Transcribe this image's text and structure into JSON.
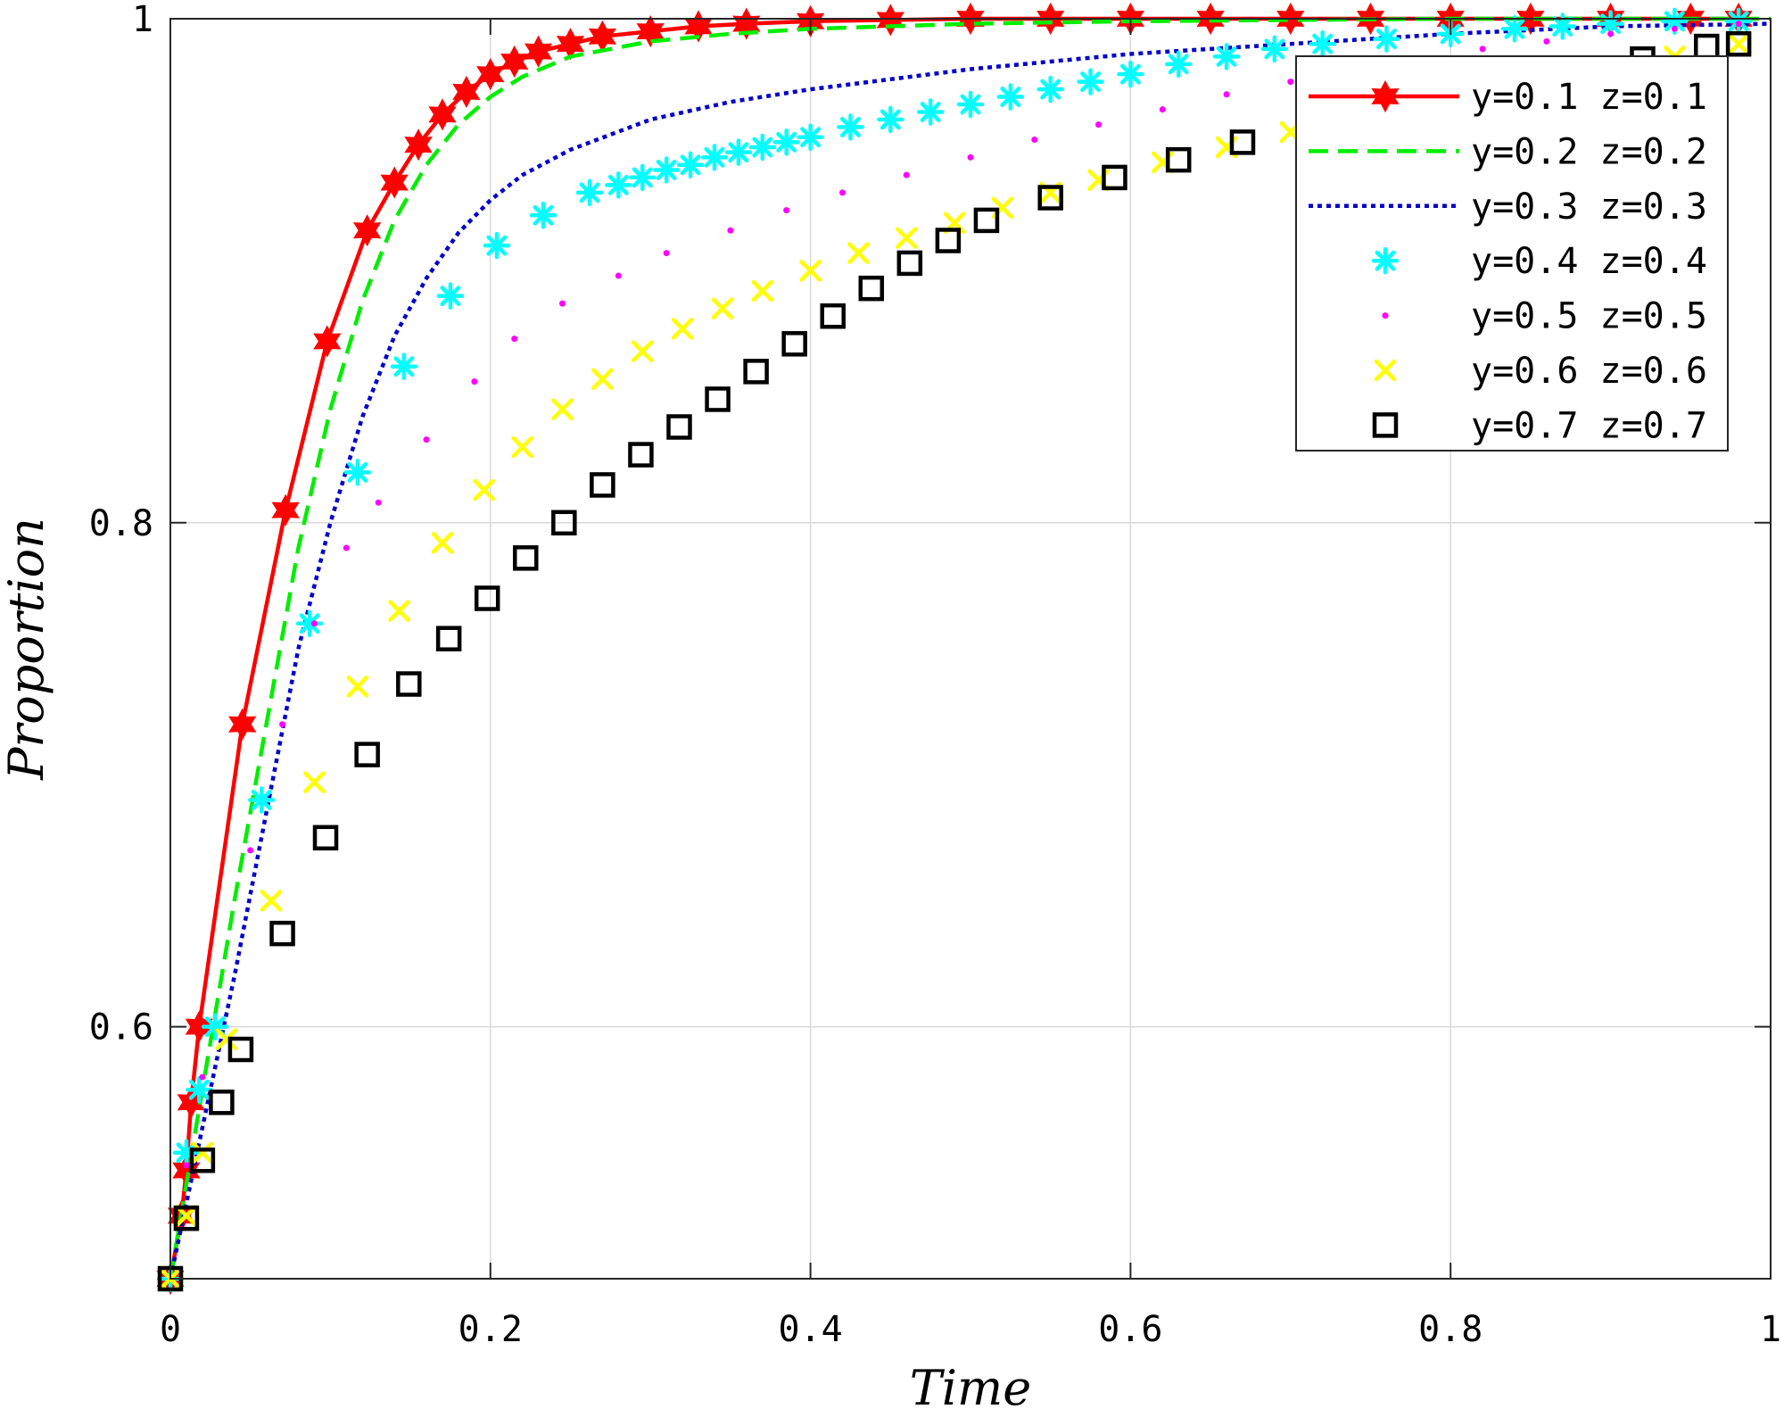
{
  "chart_data": {
    "type": "line",
    "title": "",
    "xlabel": "Time",
    "ylabel": "Proportion",
    "xlim": [
      0,
      1
    ],
    "ylim": [
      0.5,
      1
    ],
    "xticks": [
      0,
      0.2,
      0.4,
      0.6,
      0.8,
      1
    ],
    "xtick_labels": [
      "0",
      "0.2",
      "0.4",
      "0.6",
      "0.8",
      "1"
    ],
    "yticks": [
      0.6,
      0.8,
      1
    ],
    "ytick_labels": [
      "0.6",
      "0.8",
      "1"
    ],
    "grid": true,
    "legend_position": "top-right",
    "series": [
      {
        "name": "y=0.1  z=0.1",
        "color": "#ff0000",
        "line": "solid",
        "marker": "hexagram",
        "points": [
          [
            0,
            0.5
          ],
          [
            0.007,
            0.525
          ],
          [
            0.01,
            0.543
          ],
          [
            0.013,
            0.57
          ],
          [
            0.018,
            0.6
          ],
          [
            0.045,
            0.72
          ],
          [
            0.072,
            0.805
          ],
          [
            0.098,
            0.872
          ],
          [
            0.123,
            0.916
          ],
          [
            0.14,
            0.935
          ],
          [
            0.155,
            0.95
          ],
          [
            0.17,
            0.962
          ],
          [
            0.185,
            0.971
          ],
          [
            0.2,
            0.978
          ],
          [
            0.215,
            0.983
          ],
          [
            0.23,
            0.987
          ],
          [
            0.25,
            0.99
          ],
          [
            0.27,
            0.993
          ],
          [
            0.3,
            0.995
          ],
          [
            0.33,
            0.997
          ],
          [
            0.36,
            0.998
          ],
          [
            0.4,
            0.999
          ],
          [
            0.45,
            0.9995
          ],
          [
            0.5,
            1
          ],
          [
            0.55,
            1
          ],
          [
            0.6,
            1
          ],
          [
            0.65,
            1
          ],
          [
            0.7,
            1
          ],
          [
            0.75,
            1
          ],
          [
            0.8,
            1
          ],
          [
            0.85,
            1
          ],
          [
            0.9,
            1
          ],
          [
            0.95,
            1
          ],
          [
            0.98,
            1
          ]
        ]
      },
      {
        "name": "y=0.2  z=0.2",
        "color": "#00ee00",
        "line": "dashed",
        "marker": "none",
        "points": [
          [
            0,
            0.5
          ],
          [
            0.02,
            0.575
          ],
          [
            0.04,
            0.65
          ],
          [
            0.06,
            0.72
          ],
          [
            0.08,
            0.79
          ],
          [
            0.1,
            0.845
          ],
          [
            0.12,
            0.888
          ],
          [
            0.14,
            0.92
          ],
          [
            0.16,
            0.942
          ],
          [
            0.18,
            0.958
          ],
          [
            0.2,
            0.969
          ],
          [
            0.22,
            0.977
          ],
          [
            0.25,
            0.985
          ],
          [
            0.3,
            0.991
          ],
          [
            0.35,
            0.994
          ],
          [
            0.4,
            0.996
          ],
          [
            0.5,
            0.998
          ],
          [
            0.6,
            0.999
          ],
          [
            0.7,
            0.9995
          ],
          [
            0.8,
            1
          ],
          [
            1,
            1
          ]
        ]
      },
      {
        "name": "y=0.3  z=0.3",
        "color": "#0000cc",
        "line": "dotted",
        "marker": "none",
        "points": [
          [
            0,
            0.5
          ],
          [
            0.02,
            0.56
          ],
          [
            0.04,
            0.62
          ],
          [
            0.06,
            0.685
          ],
          [
            0.08,
            0.75
          ],
          [
            0.1,
            0.8
          ],
          [
            0.12,
            0.842
          ],
          [
            0.14,
            0.874
          ],
          [
            0.16,
            0.897
          ],
          [
            0.18,
            0.915
          ],
          [
            0.2,
            0.928
          ],
          [
            0.22,
            0.938
          ],
          [
            0.25,
            0.948
          ],
          [
            0.3,
            0.96
          ],
          [
            0.35,
            0.967
          ],
          [
            0.4,
            0.972
          ],
          [
            0.5,
            0.98
          ],
          [
            0.6,
            0.986
          ],
          [
            0.7,
            0.99
          ],
          [
            0.8,
            0.994
          ],
          [
            0.9,
            0.997
          ],
          [
            1,
            0.998
          ]
        ]
      },
      {
        "name": "y=0.4  z=0.4",
        "color": "#00ffff",
        "line": "none",
        "marker": "asterisk",
        "points": [
          [
            0,
            0.5
          ],
          [
            0.01,
            0.55
          ],
          [
            0.018,
            0.575
          ],
          [
            0.028,
            0.6
          ],
          [
            0.057,
            0.69
          ],
          [
            0.087,
            0.76
          ],
          [
            0.117,
            0.82
          ],
          [
            0.146,
            0.862
          ],
          [
            0.175,
            0.89
          ],
          [
            0.204,
            0.91
          ],
          [
            0.233,
            0.922
          ],
          [
            0.262,
            0.931
          ],
          [
            0.28,
            0.934
          ],
          [
            0.295,
            0.937
          ],
          [
            0.31,
            0.94
          ],
          [
            0.325,
            0.942
          ],
          [
            0.34,
            0.945
          ],
          [
            0.355,
            0.947
          ],
          [
            0.37,
            0.949
          ],
          [
            0.385,
            0.951
          ],
          [
            0.4,
            0.953
          ],
          [
            0.425,
            0.957
          ],
          [
            0.45,
            0.96
          ],
          [
            0.475,
            0.963
          ],
          [
            0.5,
            0.966
          ],
          [
            0.525,
            0.969
          ],
          [
            0.55,
            0.972
          ],
          [
            0.575,
            0.975
          ],
          [
            0.6,
            0.978
          ],
          [
            0.63,
            0.982
          ],
          [
            0.66,
            0.985
          ],
          [
            0.69,
            0.988
          ],
          [
            0.72,
            0.99
          ],
          [
            0.76,
            0.992
          ],
          [
            0.8,
            0.994
          ],
          [
            0.84,
            0.996
          ],
          [
            0.87,
            0.997
          ],
          [
            0.9,
            0.998
          ],
          [
            0.94,
            0.999
          ],
          [
            0.98,
            0.999
          ]
        ]
      },
      {
        "name": "y=0.5  z=0.5",
        "color": "#ff00ff",
        "line": "none",
        "marker": "point",
        "points": [
          [
            0,
            0.5
          ],
          [
            0.01,
            0.545
          ],
          [
            0.02,
            0.58
          ],
          [
            0.05,
            0.67
          ],
          [
            0.07,
            0.72
          ],
          [
            0.09,
            0.76
          ],
          [
            0.11,
            0.79
          ],
          [
            0.13,
            0.808
          ],
          [
            0.16,
            0.833
          ],
          [
            0.19,
            0.856
          ],
          [
            0.215,
            0.873
          ],
          [
            0.245,
            0.887
          ],
          [
            0.28,
            0.898
          ],
          [
            0.31,
            0.907
          ],
          [
            0.35,
            0.916
          ],
          [
            0.385,
            0.924
          ],
          [
            0.42,
            0.931
          ],
          [
            0.46,
            0.938
          ],
          [
            0.5,
            0.945
          ],
          [
            0.54,
            0.952
          ],
          [
            0.58,
            0.958
          ],
          [
            0.62,
            0.964
          ],
          [
            0.66,
            0.97
          ],
          [
            0.7,
            0.975
          ],
          [
            0.74,
            0.98
          ],
          [
            0.78,
            0.984
          ],
          [
            0.82,
            0.988
          ],
          [
            0.86,
            0.991
          ],
          [
            0.9,
            0.994
          ],
          [
            0.94,
            0.996
          ],
          [
            0.98,
            0.998
          ]
        ]
      },
      {
        "name": "y=0.6  z=0.6",
        "color": "#ffff00",
        "line": "none",
        "marker": "x",
        "points": [
          [
            0,
            0.5
          ],
          [
            0.01,
            0.525
          ],
          [
            0.02,
            0.55
          ],
          [
            0.035,
            0.595
          ],
          [
            0.063,
            0.65
          ],
          [
            0.09,
            0.697
          ],
          [
            0.117,
            0.735
          ],
          [
            0.143,
            0.765
          ],
          [
            0.17,
            0.792
          ],
          [
            0.196,
            0.813
          ],
          [
            0.22,
            0.83
          ],
          [
            0.245,
            0.845
          ],
          [
            0.27,
            0.857
          ],
          [
            0.295,
            0.868
          ],
          [
            0.32,
            0.877
          ],
          [
            0.345,
            0.885
          ],
          [
            0.37,
            0.892
          ],
          [
            0.4,
            0.9
          ],
          [
            0.43,
            0.907
          ],
          [
            0.46,
            0.913
          ],
          [
            0.49,
            0.919
          ],
          [
            0.52,
            0.925
          ],
          [
            0.55,
            0.931
          ],
          [
            0.58,
            0.936
          ],
          [
            0.62,
            0.943
          ],
          [
            0.66,
            0.949
          ],
          [
            0.7,
            0.955
          ],
          [
            0.74,
            0.96
          ],
          [
            0.78,
            0.965
          ],
          [
            0.82,
            0.97
          ],
          [
            0.86,
            0.975
          ],
          [
            0.9,
            0.98
          ],
          [
            0.94,
            0.985
          ],
          [
            0.98,
            0.99
          ]
        ]
      },
      {
        "name": "y=0.7  z=0.7",
        "color": "#000000",
        "line": "none",
        "marker": "square",
        "points": [
          [
            0,
            0.5
          ],
          [
            0.01,
            0.524
          ],
          [
            0.02,
            0.547
          ],
          [
            0.032,
            0.57
          ],
          [
            0.044,
            0.591
          ],
          [
            0.07,
            0.637
          ],
          [
            0.097,
            0.675
          ],
          [
            0.123,
            0.708
          ],
          [
            0.149,
            0.736
          ],
          [
            0.174,
            0.754
          ],
          [
            0.198,
            0.77
          ],
          [
            0.222,
            0.786
          ],
          [
            0.246,
            0.8
          ],
          [
            0.27,
            0.815
          ],
          [
            0.294,
            0.827
          ],
          [
            0.318,
            0.838
          ],
          [
            0.342,
            0.849
          ],
          [
            0.366,
            0.86
          ],
          [
            0.39,
            0.871
          ],
          [
            0.414,
            0.882
          ],
          [
            0.438,
            0.893
          ],
          [
            0.462,
            0.903
          ],
          [
            0.486,
            0.912
          ],
          [
            0.51,
            0.92
          ],
          [
            0.55,
            0.929
          ],
          [
            0.59,
            0.937
          ],
          [
            0.63,
            0.944
          ],
          [
            0.67,
            0.951
          ],
          [
            0.72,
            0.958
          ],
          [
            0.77,
            0.965
          ],
          [
            0.82,
            0.971
          ],
          [
            0.87,
            0.978
          ],
          [
            0.92,
            0.984
          ],
          [
            0.96,
            0.989
          ],
          [
            0.98,
            0.99
          ]
        ]
      }
    ]
  }
}
